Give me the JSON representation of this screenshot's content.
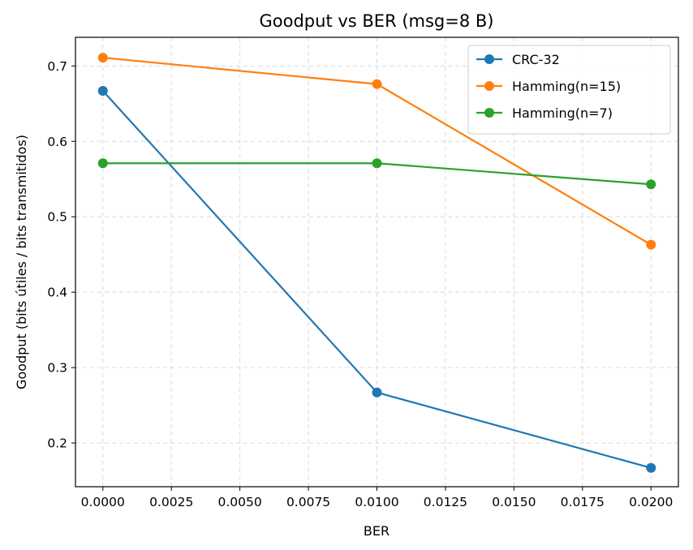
{
  "chart_data": {
    "type": "line",
    "title": "Goodput vs BER (msg=8 B)",
    "xlabel": "BER",
    "ylabel": "Goodput (bits útiles / bits transmitidos)",
    "x": [
      0.0,
      0.01,
      0.02
    ],
    "xlim": [
      -0.001,
      0.021
    ],
    "ylim": [
      0.142,
      0.738
    ],
    "xticks": [
      0.0,
      0.0025,
      0.005,
      0.0075,
      0.01,
      0.0125,
      0.015,
      0.0175,
      0.02
    ],
    "xtick_labels": [
      "0.0000",
      "0.0025",
      "0.0050",
      "0.0075",
      "0.0100",
      "0.0125",
      "0.0150",
      "0.0175",
      "0.0200"
    ],
    "yticks": [
      0.2,
      0.3,
      0.4,
      0.5,
      0.6,
      0.7
    ],
    "ytick_labels": [
      "0.2",
      "0.3",
      "0.4",
      "0.5",
      "0.6",
      "0.7"
    ],
    "grid": true,
    "legend_position": "top-right",
    "series": [
      {
        "name": "CRC-32",
        "color": "#1f77b4",
        "values": [
          0.667,
          0.267,
          0.167
        ]
      },
      {
        "name": "Hamming(n=15)",
        "color": "#ff7f0e",
        "values": [
          0.711,
          0.676,
          0.463
        ]
      },
      {
        "name": "Hamming(n=7)",
        "color": "#2ca02c",
        "values": [
          0.571,
          0.571,
          0.543
        ]
      }
    ]
  }
}
